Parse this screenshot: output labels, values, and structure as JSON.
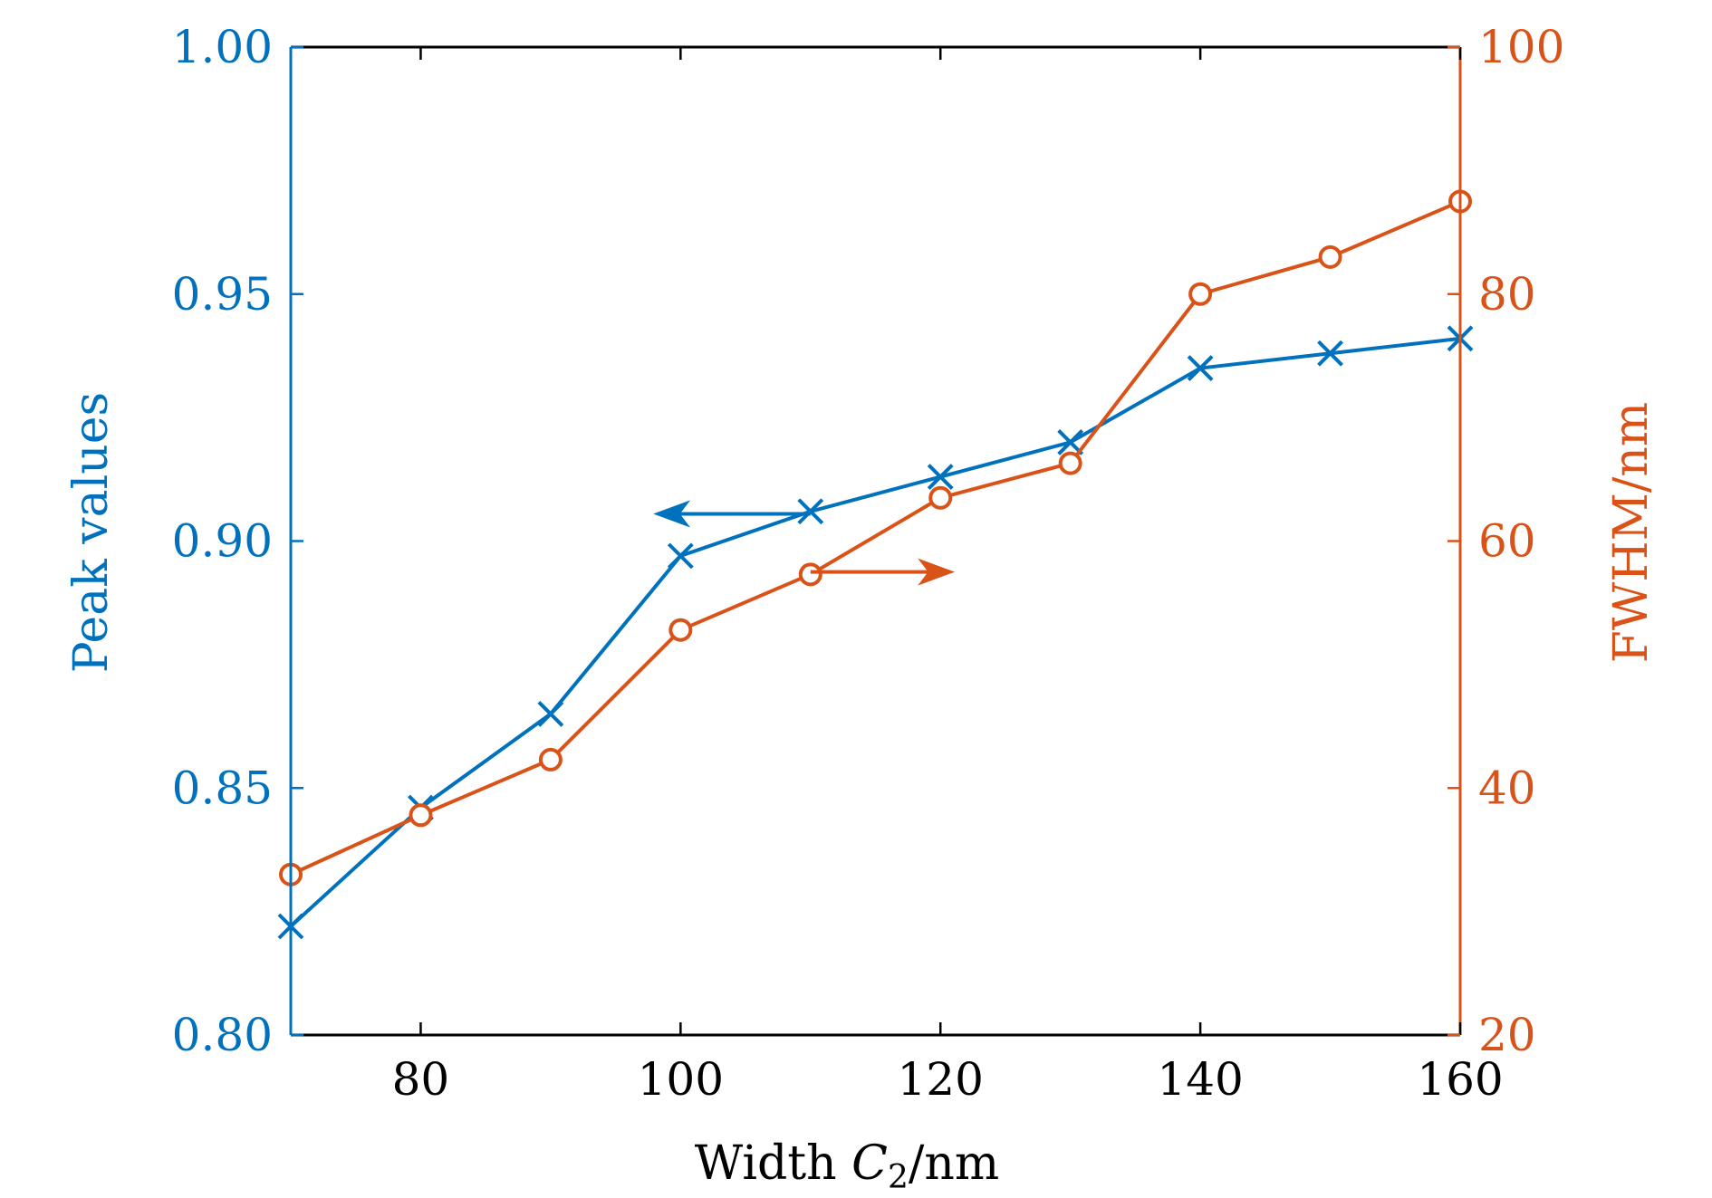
{
  "colors": {
    "left_axis": "#0072BD",
    "right_axis": "#D95319",
    "frame": "#000000",
    "background": "#ffffff"
  },
  "chart_data": {
    "type": "line",
    "title": "",
    "x": [
      70,
      80,
      90,
      100,
      110,
      120,
      130,
      140,
      150,
      160
    ],
    "xlabel": "Width ",
    "xlabel_symbol": "C",
    "xlabel_subscript": "2",
    "xlabel_unit": "/nm",
    "xlim": [
      70,
      160
    ],
    "xticks": [
      80,
      100,
      120,
      140,
      160
    ],
    "xtick_labels": [
      "80",
      "100",
      "120",
      "140",
      "160"
    ],
    "y_left": {
      "label": "Peak values",
      "lim": [
        0.8,
        1.0
      ],
      "ticks": [
        0.8,
        0.85,
        0.9,
        0.95,
        1.0
      ],
      "tick_labels": [
        "0.80",
        "0.85",
        "0.90",
        "0.95",
        "1.00"
      ],
      "color": "#0072BD"
    },
    "y_right": {
      "label": "FWHM/nm",
      "lim": [
        20,
        100
      ],
      "ticks": [
        20,
        40,
        60,
        80,
        100
      ],
      "tick_labels": [
        "20",
        "40",
        "60",
        "80",
        "100"
      ],
      "color": "#D95319"
    },
    "series": [
      {
        "axis": "left",
        "marker": "x",
        "color": "#0072BD",
        "values": [
          0.822,
          0.846,
          0.865,
          0.897,
          0.906,
          0.913,
          0.92,
          0.935,
          0.938,
          0.941
        ]
      },
      {
        "axis": "right",
        "marker": "o",
        "color": "#D95319",
        "values": [
          33.0,
          37.8,
          42.3,
          52.8,
          57.3,
          63.5,
          66.3,
          80.0,
          83.0,
          87.5
        ]
      }
    ],
    "annotations": [
      {
        "type": "arrow",
        "points_to": "left",
        "color": "#0072BD",
        "x_from": 110,
        "x_to": 98,
        "y": 0.9055,
        "axis": "left"
      },
      {
        "type": "arrow",
        "points_to": "right",
        "color": "#D95319",
        "x_from": 110,
        "x_to": 121,
        "y": 57.5,
        "axis": "right"
      }
    ],
    "grid": false,
    "legend": "none"
  }
}
